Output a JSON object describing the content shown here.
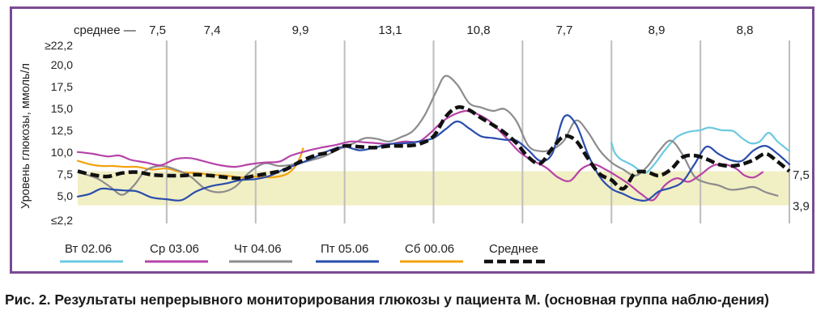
{
  "caption": "Рис. 2. Результаты непрерывного мониторирования глюкозы у пациента М. (основная группа наблю-дения)",
  "colors": {
    "frame": "#7a4a93",
    "target_band": "#f1efc4",
    "vgrid": "#bdbdbd",
    "tu": "#6cc9e0",
    "wed": "#b743a8",
    "thu": "#8c8c8c",
    "fri": "#2a4dac",
    "sat": "#f3a20e",
    "avg": "#111111"
  },
  "chart_data": {
    "type": "line",
    "ylabel": "Уровень глюкозы, ммоль/л",
    "ylim": [
      2.2,
      22.2
    ],
    "y_tick_labels": [
      "≥22,2",
      "20,0",
      "17,5",
      "15,0",
      "12,5",
      "10,0",
      "7,5",
      "5,0",
      "≤2,2"
    ],
    "y_tick_values": [
      22.2,
      20.0,
      17.5,
      15.0,
      12.5,
      10.0,
      7.5,
      5.0,
      2.2
    ],
    "target_range": [
      3.9,
      7.8
    ],
    "xlim": [
      0,
      24
    ],
    "vertical_gridlines_hours": [
      3,
      6,
      9,
      12,
      15,
      18,
      21,
      24
    ],
    "mean_label_prefix": "среднее —",
    "mean_labels": [
      "7,5",
      "7,4",
      "9,9",
      "13,1",
      "10,8",
      "7,7",
      "8,9",
      "8,8"
    ],
    "right_labels": [
      {
        "text": "7,5",
        "value": 7.5
      },
      {
        "text": "3,9",
        "value": 3.9
      }
    ],
    "series": [
      {
        "name": "Вт 02.06",
        "color_key": "tu",
        "x": [
          18.0,
          18.1,
          18.3,
          18.7,
          19.1,
          19.4,
          19.8,
          20.2,
          20.6,
          21.0,
          21.3,
          21.7,
          22.1,
          22.4,
          22.7,
          23.0,
          23.3,
          23.6,
          24.0
        ],
        "y": [
          11.1,
          10.0,
          9.2,
          8.5,
          7.6,
          8.4,
          10.2,
          11.7,
          12.3,
          12.5,
          12.8,
          12.5,
          12.4,
          11.6,
          11.0,
          11.2,
          12.2,
          11.2,
          10.1
        ]
      },
      {
        "name": "Ср 03.06",
        "color_key": "wed",
        "x": [
          0.0,
          0.5,
          1.0,
          1.4,
          1.8,
          2.3,
          2.8,
          3.3,
          3.8,
          4.3,
          4.8,
          5.3,
          5.8,
          6.3,
          6.8,
          7.2,
          7.7,
          8.2,
          8.7,
          9.2,
          9.7,
          10.1,
          10.5,
          11.0,
          11.5,
          11.9,
          12.3,
          12.7,
          13.1,
          13.5,
          13.9,
          14.4,
          14.9,
          15.3,
          15.8,
          16.2,
          16.6,
          17.0,
          17.4,
          17.8,
          18.2,
          18.6,
          19.0,
          19.4,
          19.8,
          20.2,
          20.6,
          21.0,
          21.4,
          21.8,
          22.2,
          22.5,
          22.8,
          23.1
        ],
        "y": [
          10.0,
          9.8,
          9.5,
          9.6,
          9.1,
          8.8,
          8.5,
          9.2,
          9.3,
          8.9,
          8.5,
          8.3,
          8.6,
          8.8,
          8.9,
          9.6,
          10.1,
          10.5,
          10.8,
          11.2,
          11.1,
          11.0,
          10.9,
          11.2,
          11.2,
          12.2,
          13.5,
          14.3,
          14.7,
          14.3,
          13.5,
          11.8,
          10.0,
          9.1,
          8.2,
          7.1,
          6.7,
          8.1,
          8.6,
          8.0,
          7.2,
          6.3,
          5.2,
          4.5,
          6.2,
          7.0,
          6.6,
          7.4,
          8.4,
          8.6,
          8.1,
          7.3,
          7.1,
          7.7
        ]
      },
      {
        "name": "Чт 04.06",
        "color_key": "thu",
        "x": [
          0.3,
          0.7,
          1.1,
          1.5,
          1.9,
          2.3,
          2.8,
          3.3,
          3.8,
          4.3,
          4.8,
          5.3,
          5.8,
          6.3,
          6.8,
          7.3,
          7.8,
          8.3,
          8.8,
          9.3,
          9.7,
          10.1,
          10.5,
          10.9,
          11.3,
          11.7,
          12.1,
          12.4,
          12.8,
          13.2,
          13.6,
          14.0,
          14.4,
          14.8,
          15.2,
          15.6,
          16.0,
          16.4,
          16.8,
          17.2,
          17.6,
          18.0,
          18.4,
          18.8,
          19.2,
          19.6,
          20.0,
          20.4,
          20.8,
          21.2,
          21.6,
          22.0,
          22.4,
          22.8,
          23.2,
          23.6
        ],
        "y": [
          7.4,
          6.9,
          6.0,
          5.1,
          6.2,
          7.9,
          8.4,
          8.0,
          7.2,
          5.8,
          5.4,
          6.0,
          7.7,
          8.7,
          8.4,
          8.6,
          9.0,
          9.5,
          10.3,
          11.0,
          11.6,
          11.5,
          11.2,
          11.7,
          12.4,
          14.2,
          17.0,
          18.7,
          17.7,
          15.6,
          15.1,
          14.7,
          14.9,
          13.5,
          10.7,
          10.1,
          10.3,
          11.3,
          13.6,
          12.3,
          10.2,
          8.8,
          8.0,
          7.3,
          8.3,
          10.1,
          11.3,
          9.7,
          7.2,
          6.5,
          6.2,
          5.7,
          5.8,
          6.0,
          5.4,
          5.0
        ]
      },
      {
        "name": "Пт 05.06",
        "color_key": "fri",
        "x": [
          0.0,
          0.4,
          0.8,
          1.2,
          1.6,
          2.0,
          2.5,
          3.0,
          3.5,
          4.0,
          4.5,
          5.0,
          5.5,
          6.0,
          6.5,
          7.0,
          7.5,
          8.0,
          8.5,
          9.0,
          9.5,
          10.0,
          10.5,
          11.0,
          11.5,
          12.0,
          12.4,
          12.8,
          13.2,
          13.6,
          14.0,
          14.4,
          14.8,
          15.2,
          15.6,
          16.0,
          16.4,
          16.8,
          17.2,
          17.6,
          18.0,
          18.4,
          18.8,
          19.2,
          19.6,
          20.0,
          20.4,
          20.8,
          21.2,
          21.6,
          22.0,
          22.4,
          22.8,
          23.2,
          23.6,
          24.0
        ],
        "y": [
          4.9,
          5.2,
          5.8,
          5.7,
          5.6,
          5.5,
          4.8,
          4.6,
          4.5,
          5.5,
          6.1,
          6.4,
          6.8,
          6.9,
          7.3,
          8.1,
          8.7,
          9.4,
          10.2,
          10.6,
          10.2,
          10.5,
          10.9,
          11.0,
          11.2,
          11.6,
          12.6,
          13.5,
          12.7,
          11.8,
          11.6,
          11.4,
          11.3,
          10.2,
          9.0,
          9.8,
          14.0,
          13.2,
          9.8,
          7.2,
          5.8,
          5.2,
          4.6,
          4.5,
          5.5,
          5.9,
          6.6,
          8.6,
          10.6,
          9.8,
          9.1,
          9.0,
          10.2,
          10.7,
          9.8,
          8.6
        ]
      },
      {
        "name": "Сб 00.06",
        "color_key": "sat",
        "x": [
          0.0,
          0.4,
          0.8,
          1.2,
          1.6,
          2.0,
          2.5,
          3.0,
          3.5,
          4.0,
          4.5,
          5.0,
          5.5,
          6.0,
          6.5,
          7.0,
          7.3,
          7.5,
          7.6
        ],
        "y": [
          9.0,
          8.6,
          8.4,
          8.4,
          8.3,
          8.3,
          8.0,
          8.1,
          7.7,
          7.6,
          7.4,
          7.3,
          7.1,
          7.2,
          7.1,
          7.4,
          8.2,
          9.4,
          10.4
        ]
      },
      {
        "name": "Среднее",
        "color_key": "avg",
        "x": [
          0.0,
          0.5,
          1.0,
          1.5,
          2.0,
          2.5,
          3.0,
          3.5,
          4.0,
          4.5,
          5.0,
          5.5,
          6.0,
          6.5,
          7.0,
          7.5,
          8.0,
          8.5,
          9.0,
          9.5,
          10.0,
          10.5,
          11.0,
          11.5,
          12.0,
          12.4,
          12.8,
          13.2,
          13.6,
          14.0,
          14.4,
          14.8,
          15.2,
          15.6,
          16.0,
          16.4,
          16.8,
          17.2,
          17.6,
          18.0,
          18.4,
          18.8,
          19.2,
          19.6,
          20.0,
          20.4,
          20.8,
          21.2,
          21.6,
          22.0,
          22.4,
          22.8,
          23.2,
          23.6,
          24.0
        ],
        "y": [
          7.8,
          7.4,
          7.2,
          7.6,
          7.7,
          7.4,
          7.3,
          7.3,
          7.4,
          7.3,
          7.1,
          7.0,
          7.3,
          7.6,
          8.0,
          8.9,
          9.6,
          10.0,
          10.7,
          10.6,
          10.5,
          10.7,
          10.7,
          10.9,
          11.8,
          14.0,
          15.1,
          14.8,
          13.9,
          13.1,
          12.2,
          11.0,
          9.4,
          8.7,
          10.4,
          11.8,
          11.3,
          9.3,
          7.5,
          6.8,
          5.8,
          7.6,
          7.7,
          7.3,
          8.0,
          9.4,
          9.6,
          9.2,
          8.6,
          8.4,
          8.6,
          9.1,
          9.8,
          8.9,
          7.8
        ]
      }
    ]
  }
}
